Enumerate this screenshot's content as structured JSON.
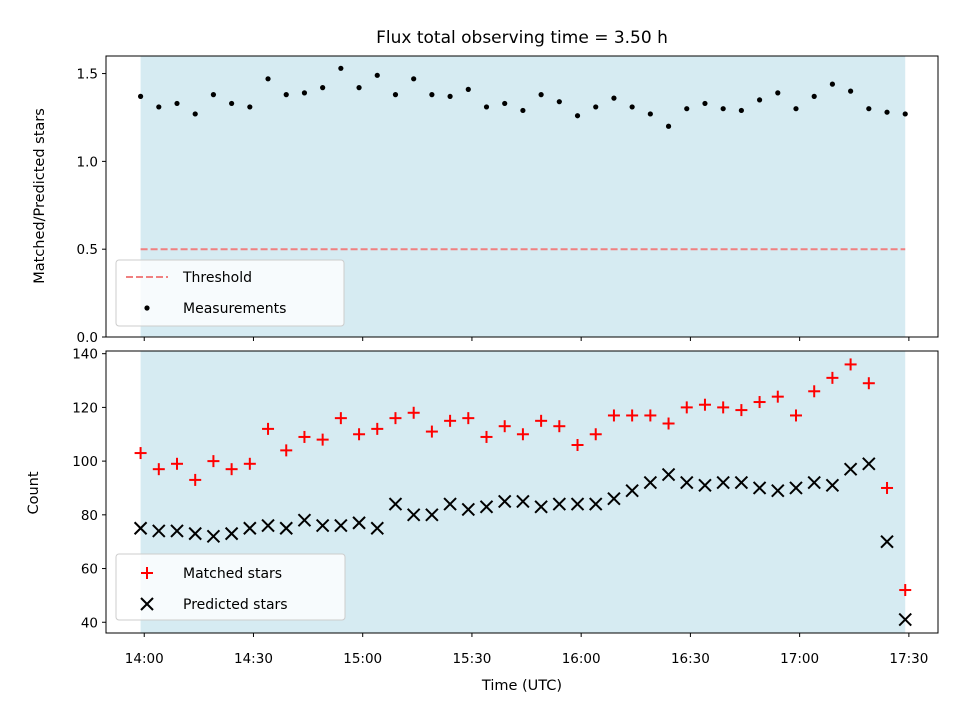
{
  "chart_data": [
    {
      "type": "scatter",
      "title": "Flux total observing time = 3.50 h",
      "xlabel": "",
      "ylabel": "Matched/Predicted stars",
      "x_type": "time",
      "ylim": [
        0,
        1.6
      ],
      "yticks": [
        "0.0",
        "0.5",
        "1.0",
        "1.5"
      ],
      "shaded_span": [
        "13:59",
        "17:29"
      ],
      "shade_color": "#add8e6",
      "threshold": {
        "name": "Threshold",
        "value": 0.5,
        "color": "#f08080",
        "style": "dashed"
      },
      "legend_position": "lower-left",
      "series": [
        {
          "name": "Measurements",
          "marker": "dot",
          "color": "#000000",
          "x": [
            "13:59",
            "14:04",
            "14:09",
            "14:14",
            "14:19",
            "14:24",
            "14:29",
            "14:34",
            "14:39",
            "14:44",
            "14:49",
            "14:54",
            "14:59",
            "15:04",
            "15:09",
            "15:14",
            "15:19",
            "15:24",
            "15:29",
            "15:34",
            "15:39",
            "15:44",
            "15:49",
            "15:54",
            "15:59",
            "16:04",
            "16:09",
            "16:14",
            "16:19",
            "16:24",
            "16:29",
            "16:34",
            "16:39",
            "16:44",
            "16:49",
            "16:54",
            "16:59",
            "17:04",
            "17:09",
            "17:14",
            "17:19",
            "17:24",
            "17:29"
          ],
          "values": [
            1.37,
            1.31,
            1.33,
            1.27,
            1.38,
            1.33,
            1.31,
            1.47,
            1.38,
            1.39,
            1.42,
            1.53,
            1.42,
            1.49,
            1.38,
            1.47,
            1.38,
            1.37,
            1.41,
            1.31,
            1.33,
            1.29,
            1.38,
            1.34,
            1.26,
            1.31,
            1.36,
            1.31,
            1.27,
            1.2,
            1.3,
            1.33,
            1.3,
            1.29,
            1.35,
            1.39,
            1.3,
            1.37,
            1.44,
            1.4,
            1.3,
            1.28,
            1.27
          ]
        }
      ]
    },
    {
      "type": "scatter",
      "title": "",
      "xlabel": "Time (UTC)",
      "ylabel": "Count",
      "x_type": "time",
      "xticks": [
        "14:00",
        "14:30",
        "15:00",
        "15:30",
        "16:00",
        "16:30",
        "17:00",
        "17:30"
      ],
      "ylim": [
        36,
        141
      ],
      "yticks": [
        "40",
        "60",
        "80",
        "100",
        "120",
        "140"
      ],
      "shaded_span": [
        "13:59",
        "17:29"
      ],
      "shade_color": "#add8e6",
      "legend_position": "lower-left",
      "x": [
        "13:59",
        "14:04",
        "14:09",
        "14:14",
        "14:19",
        "14:24",
        "14:29",
        "14:34",
        "14:39",
        "14:44",
        "14:49",
        "14:54",
        "14:59",
        "15:04",
        "15:09",
        "15:14",
        "15:19",
        "15:24",
        "15:29",
        "15:34",
        "15:39",
        "15:44",
        "15:49",
        "15:54",
        "15:59",
        "16:04",
        "16:09",
        "16:14",
        "16:19",
        "16:24",
        "16:29",
        "16:34",
        "16:39",
        "16:44",
        "16:49",
        "16:54",
        "16:59",
        "17:04",
        "17:09",
        "17:14",
        "17:19",
        "17:24",
        "17:29"
      ],
      "series": [
        {
          "name": "Matched stars",
          "marker": "plus",
          "color": "#ff0000",
          "values": [
            103,
            97,
            99,
            93,
            100,
            97,
            99,
            112,
            104,
            109,
            108,
            116,
            110,
            112,
            116,
            118,
            111,
            115,
            116,
            109,
            113,
            110,
            115,
            113,
            106,
            110,
            117,
            117,
            117,
            114,
            120,
            121,
            120,
            119,
            122,
            124,
            117,
            126,
            131,
            136,
            129,
            90,
            52
          ]
        },
        {
          "name": "Predicted stars",
          "marker": "x",
          "color": "#000000",
          "values": [
            75,
            74,
            74,
            73,
            72,
            73,
            75,
            76,
            75,
            78,
            76,
            76,
            77,
            75,
            84,
            80,
            80,
            84,
            82,
            83,
            85,
            85,
            83,
            84,
            84,
            84,
            86,
            89,
            92,
            95,
            92,
            91,
            92,
            92,
            90,
            89,
            90,
            92,
            91,
            97,
            99,
            70,
            41
          ]
        }
      ]
    }
  ]
}
